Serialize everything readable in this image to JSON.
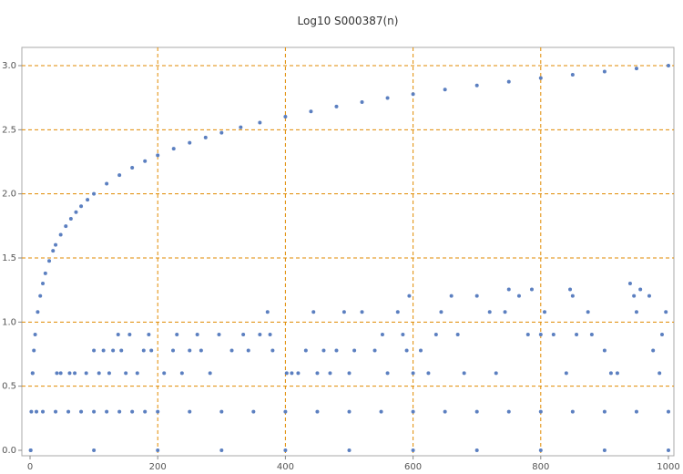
{
  "chart_data": {
    "type": "scatter",
    "title": "Log10 S000387(n)",
    "xlabel": "",
    "ylabel": "",
    "xlim": [
      0,
      1000
    ],
    "ylim": [
      0,
      3.0
    ],
    "x_ticks": [
      0,
      200,
      400,
      600,
      800,
      1000
    ],
    "y_ticks": [
      0.0,
      0.5,
      1.0,
      1.5,
      2.0,
      2.5,
      3.0
    ],
    "x_tick_labels": [
      "0",
      "200",
      "400",
      "600",
      "800",
      "1000"
    ],
    "y_tick_labels": [
      "0.0",
      "0.5",
      "1.0",
      "1.5",
      "2.0",
      "2.5",
      "3.0"
    ],
    "grid": true,
    "point_color": "#5b7fc0",
    "grid_color": "#e08a00",
    "series": [
      {
        "description_rule": "upper curve y = log10(n)",
        "points": [
          [
            1,
            0
          ],
          [
            4,
            0.602
          ],
          [
            6,
            0.778
          ],
          [
            8,
            0.903
          ],
          [
            12,
            1.079
          ],
          [
            16,
            1.204
          ],
          [
            20,
            1.301
          ],
          [
            24,
            1.38
          ],
          [
            30,
            1.477
          ],
          [
            36,
            1.556
          ],
          [
            40,
            1.602
          ],
          [
            48,
            1.681
          ],
          [
            56,
            1.748
          ],
          [
            64,
            1.806
          ],
          [
            72,
            1.857
          ],
          [
            80,
            1.903
          ],
          [
            90,
            1.954
          ],
          [
            100,
            2.0
          ],
          [
            120,
            2.079
          ],
          [
            140,
            2.146
          ],
          [
            160,
            2.204
          ],
          [
            180,
            2.255
          ],
          [
            200,
            2.301
          ],
          [
            225,
            2.352
          ],
          [
            250,
            2.398
          ],
          [
            275,
            2.439
          ],
          [
            300,
            2.477
          ],
          [
            330,
            2.519
          ],
          [
            360,
            2.556
          ],
          [
            400,
            2.602
          ],
          [
            440,
            2.643
          ],
          [
            480,
            2.681
          ],
          [
            520,
            2.716
          ],
          [
            560,
            2.748
          ],
          [
            600,
            2.778
          ],
          [
            650,
            2.813
          ],
          [
            700,
            2.845
          ],
          [
            750,
            2.875
          ],
          [
            800,
            2.903
          ],
          [
            850,
            2.929
          ],
          [
            900,
            2.954
          ],
          [
            950,
            2.978
          ],
          [
            1000,
            3.0
          ]
        ]
      },
      {
        "description_rule": "level y = log10(2)",
        "points": [
          [
            2,
            0.301
          ],
          [
            10,
            0.301
          ],
          [
            20,
            0.301
          ],
          [
            40,
            0.301
          ],
          [
            60,
            0.301
          ],
          [
            80,
            0.301
          ],
          [
            100,
            0.301
          ],
          [
            120,
            0.301
          ],
          [
            140,
            0.301
          ],
          [
            160,
            0.301
          ],
          [
            180,
            0.301
          ],
          [
            200,
            0.301
          ],
          [
            250,
            0.301
          ],
          [
            300,
            0.301
          ],
          [
            350,
            0.301
          ],
          [
            400,
            0.301
          ],
          [
            450,
            0.301
          ],
          [
            500,
            0.301
          ],
          [
            550,
            0.301
          ],
          [
            600,
            0.301
          ],
          [
            650,
            0.301
          ],
          [
            700,
            0.301
          ],
          [
            750,
            0.301
          ],
          [
            800,
            0.301
          ],
          [
            850,
            0.301
          ],
          [
            900,
            0.301
          ],
          [
            950,
            0.301
          ],
          [
            1000,
            0.301
          ]
        ]
      },
      {
        "description_rule": "level y = 0",
        "points": [
          [
            1,
            0
          ],
          [
            100,
            0
          ],
          [
            200,
            0
          ],
          [
            300,
            0
          ],
          [
            400,
            0
          ],
          [
            500,
            0
          ],
          [
            600,
            0
          ],
          [
            700,
            0
          ],
          [
            800,
            0
          ],
          [
            900,
            0
          ],
          [
            1000,
            0
          ]
        ]
      },
      {
        "description_rule": "scattered mid values",
        "points": [
          [
            4,
            0.602
          ],
          [
            42,
            0.602
          ],
          [
            48,
            0.602
          ],
          [
            62,
            0.602
          ],
          [
            70,
            0.602
          ],
          [
            88,
            0.602
          ],
          [
            100,
            0.778
          ],
          [
            108,
            0.602
          ],
          [
            115,
            0.778
          ],
          [
            124,
            0.602
          ],
          [
            130,
            0.778
          ],
          [
            138,
            0.903
          ],
          [
            143,
            0.778
          ],
          [
            150,
            0.602
          ],
          [
            156,
            0.903
          ],
          [
            168,
            0.602
          ],
          [
            178,
            0.778
          ],
          [
            186,
            0.903
          ],
          [
            190,
            0.778
          ],
          [
            210,
            0.602
          ],
          [
            224,
            0.778
          ],
          [
            230,
            0.903
          ],
          [
            238,
            0.602
          ],
          [
            250,
            0.778
          ],
          [
            262,
            0.903
          ],
          [
            268,
            0.778
          ],
          [
            282,
            0.602
          ],
          [
            296,
            0.903
          ],
          [
            316,
            0.778
          ],
          [
            334,
            0.903
          ],
          [
            342,
            0.778
          ],
          [
            360,
            0.903
          ],
          [
            372,
            1.079
          ],
          [
            376,
            0.903
          ],
          [
            380,
            0.778
          ],
          [
            402,
            0.602
          ],
          [
            410,
            0.602
          ],
          [
            420,
            0.602
          ],
          [
            432,
            0.778
          ],
          [
            444,
            1.079
          ],
          [
            450,
            0.602
          ],
          [
            460,
            0.778
          ],
          [
            470,
            0.602
          ],
          [
            480,
            0.778
          ],
          [
            492,
            1.079
          ],
          [
            500,
            0.602
          ],
          [
            508,
            0.778
          ],
          [
            520,
            1.079
          ],
          [
            540,
            0.778
          ],
          [
            552,
            0.903
          ],
          [
            560,
            0.602
          ],
          [
            576,
            1.079
          ],
          [
            584,
            0.903
          ],
          [
            590,
            0.778
          ],
          [
            594,
            1.204
          ],
          [
            600,
            0.602
          ],
          [
            612,
            0.778
          ],
          [
            624,
            0.602
          ],
          [
            636,
            0.903
          ],
          [
            644,
            1.079
          ],
          [
            660,
            1.204
          ],
          [
            670,
            0.903
          ],
          [
            680,
            0.602
          ],
          [
            700,
            1.204
          ],
          [
            720,
            1.079
          ],
          [
            730,
            0.602
          ],
          [
            744,
            1.079
          ],
          [
            750,
            1.255
          ],
          [
            766,
            1.204
          ],
          [
            780,
            0.903
          ],
          [
            786,
            1.255
          ],
          [
            800,
            0.903
          ],
          [
            806,
            1.079
          ],
          [
            820,
            0.903
          ],
          [
            840,
            0.602
          ],
          [
            846,
            1.255
          ],
          [
            850,
            1.204
          ],
          [
            856,
            0.903
          ],
          [
            874,
            1.079
          ],
          [
            880,
            0.903
          ],
          [
            900,
            0.778
          ],
          [
            910,
            0.602
          ],
          [
            920,
            0.602
          ],
          [
            940,
            1.301
          ],
          [
            946,
            1.204
          ],
          [
            950,
            1.079
          ],
          [
            956,
            1.255
          ],
          [
            970,
            1.204
          ],
          [
            976,
            0.778
          ],
          [
            986,
            0.602
          ],
          [
            990,
            0.903
          ],
          [
            996,
            1.079
          ]
        ]
      }
    ]
  }
}
